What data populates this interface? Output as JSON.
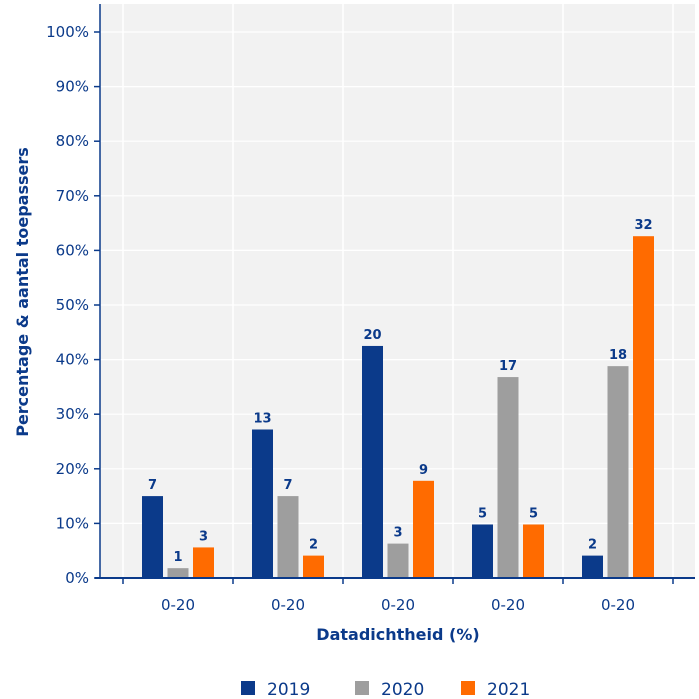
{
  "chart_data": {
    "type": "bar",
    "categories": [
      "0-20",
      "0-20",
      "0-20",
      "0-20",
      "0-20"
    ],
    "series": [
      {
        "name": "2019",
        "color": "#0b3a8a",
        "values": [
          15,
          27.2,
          42.5,
          9.8,
          4.1
        ],
        "labels": [
          "7",
          "13",
          "20",
          "5",
          "2"
        ]
      },
      {
        "name": "2020",
        "color": "#9e9e9e",
        "values": [
          1.8,
          15,
          6.3,
          36.8,
          38.8
        ],
        "labels": [
          "1",
          "7",
          "3",
          "17",
          "18"
        ]
      },
      {
        "name": "2021",
        "color": "#ff6b00",
        "values": [
          5.6,
          4.1,
          17.8,
          9.8,
          62.6
        ],
        "labels": [
          "3",
          "2",
          "9",
          "5",
          "32"
        ]
      }
    ],
    "xlabel": "Datadichtheid (%)",
    "ylabel": "Percentage & aantal toepassers",
    "ylim": [
      0,
      100
    ],
    "yticks": [
      "0%",
      "10%",
      "20%",
      "30%",
      "40%",
      "50%",
      "60%",
      "70%",
      "80%",
      "90%",
      "100%"
    ],
    "grid": true,
    "legend_position": "bottom"
  }
}
